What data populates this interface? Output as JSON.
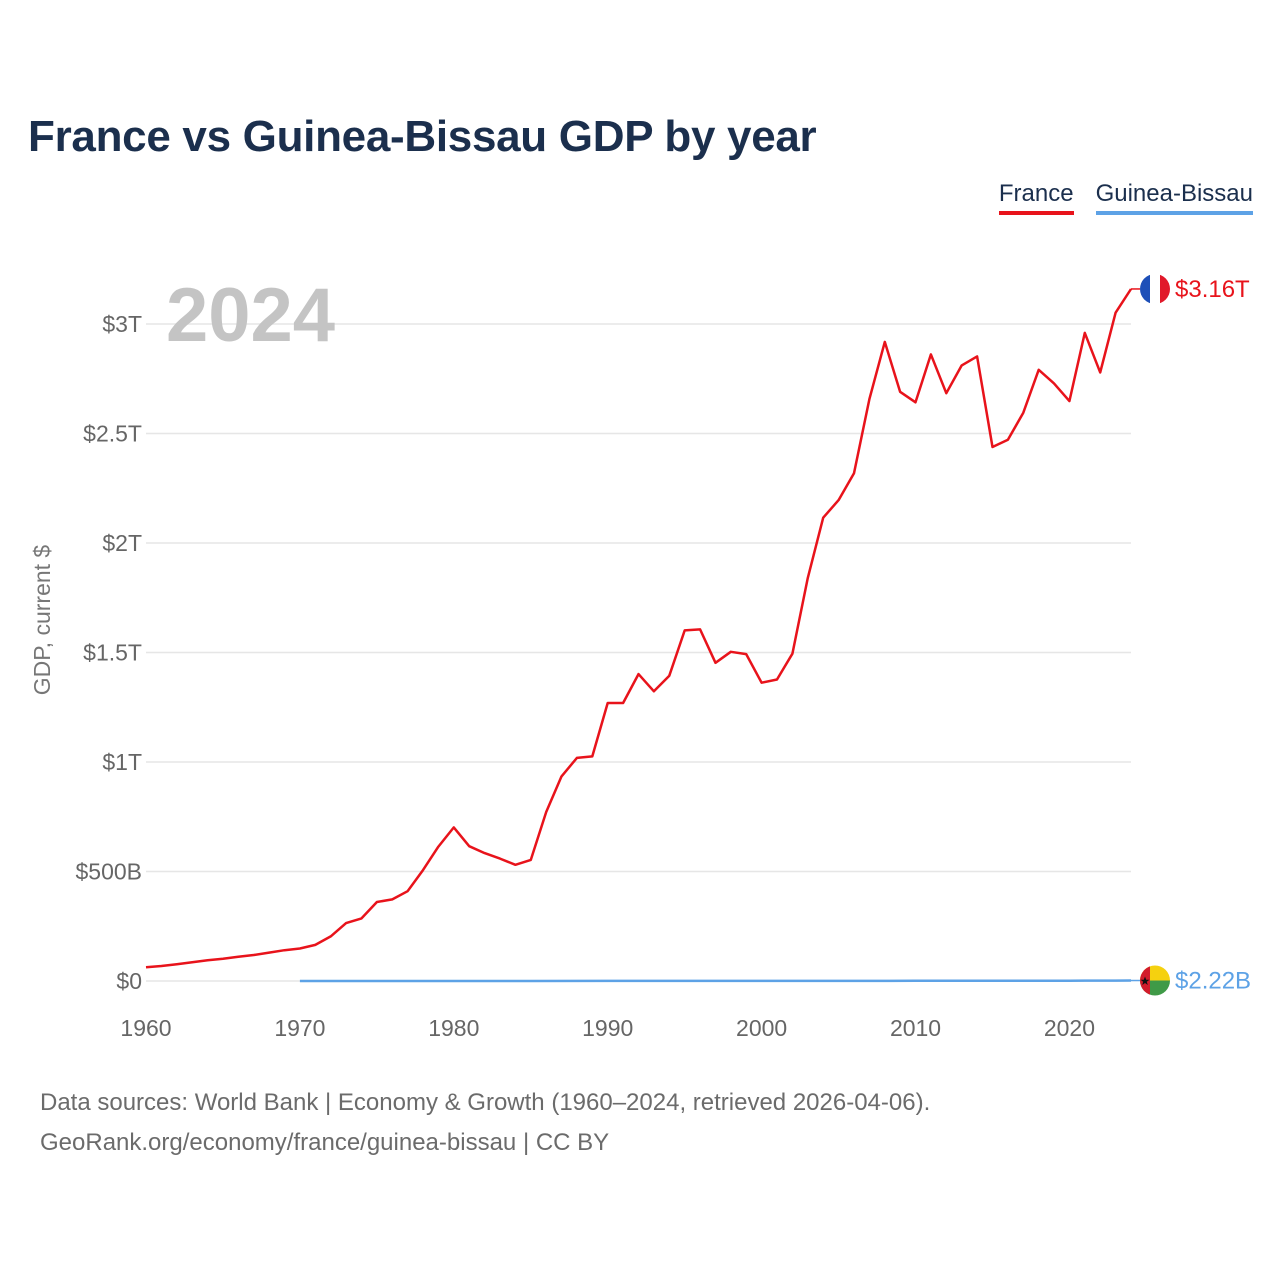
{
  "chart_data": {
    "type": "line",
    "title": "France vs Guinea-Bissau GDP by year",
    "xlabel": "",
    "ylabel": "GDP, current $",
    "xlim": [
      1960,
      2024
    ],
    "ylim": [
      0,
      3300000000000
    ],
    "x_ticks": [
      1960,
      1970,
      1980,
      1990,
      2000,
      2010,
      2020
    ],
    "y_ticks": [
      {
        "value": 0,
        "label": "$0"
      },
      {
        "value": 500000000000,
        "label": "$500B"
      },
      {
        "value": 1000000000000,
        "label": "$1T"
      },
      {
        "value": 1500000000000,
        "label": "$1.5T"
      },
      {
        "value": 2000000000000,
        "label": "$2T"
      },
      {
        "value": 2500000000000,
        "label": "$2.5T"
      },
      {
        "value": 3000000000000,
        "label": "$3T"
      }
    ],
    "year_watermark": "2024",
    "series": [
      {
        "name": "France",
        "color": "#e8131b",
        "end_label": "$3.16T",
        "flag": "france-flag",
        "x": [
          1960,
          1961,
          1962,
          1963,
          1964,
          1965,
          1966,
          1967,
          1968,
          1969,
          1970,
          1971,
          1972,
          1973,
          1974,
          1975,
          1976,
          1977,
          1978,
          1979,
          1980,
          1981,
          1982,
          1983,
          1984,
          1985,
          1986,
          1987,
          1988,
          1989,
          1990,
          1991,
          1992,
          1993,
          1994,
          1995,
          1996,
          1997,
          1998,
          1999,
          2000,
          2001,
          2002,
          2003,
          2004,
          2005,
          2006,
          2007,
          2008,
          2009,
          2010,
          2011,
          2012,
          2013,
          2014,
          2015,
          2016,
          2017,
          2018,
          2019,
          2020,
          2021,
          2022,
          2023,
          2024
        ],
        "values": [
          62650000000,
          68370000000,
          76280000000,
          85490000000,
          94910000000,
          101600000000,
          110300000000,
          118800000000,
          129700000000,
          140700000000,
          148500000000,
          165000000000,
          203500000000,
          264400000000,
          285700000000,
          360800000000,
          372600000000,
          410200000000,
          506400000000,
          613500000000,
          701300000000,
          615600000000,
          584000000000,
          559100000000,
          530700000000,
          553100000000,
          771500000000,
          934200000000,
          1018800000000,
          1025500000000,
          1269200000000,
          1269300000000,
          1401500000000,
          1322800000000,
          1393900000000,
          1601100000000,
          1605700000000,
          1452900000000,
          1503100000000,
          1492600000000,
          1362200000000,
          1376500000000,
          1494300000000,
          1840500000000,
          2115700000000,
          2196100000000,
          2318600000000,
          2657200000000,
          2918400000000,
          2690200000000,
          2642600000000,
          2861400000000,
          2683800000000,
          2811100000000,
          2852200000000,
          2438200000000,
          2471300000000,
          2595200000000,
          2790900000000,
          2728900000000,
          2647900000000,
          2959400000000,
          2779100000000,
          3051800000000,
          3160000000000
        ]
      },
      {
        "name": "Guinea-Bissau",
        "color": "#5da2e6",
        "end_label": "$2.22B",
        "flag": "guinea-bissau-flag",
        "x": [
          1970,
          1975,
          1980,
          1985,
          1990,
          1995,
          2000,
          2005,
          2010,
          2015,
          2020,
          2021,
          2022,
          2023,
          2024
        ],
        "values": [
          78700000,
          123500000,
          111200000,
          160900000,
          244000000,
          256600000,
          370200000,
          587400000,
          849000000,
          1047800000,
          1432000000,
          1638000000,
          1634000000,
          1970000000,
          2220000000
        ]
      }
    ]
  },
  "legend": {
    "france": "France",
    "guinea_bissau": "Guinea-Bissau"
  },
  "footer": {
    "line1": "Data sources: World Bank | Economy & Growth (1960–2024, retrieved 2026-04-06).",
    "line2": "GeoRank.org/economy/france/guinea-bissau | CC BY"
  }
}
